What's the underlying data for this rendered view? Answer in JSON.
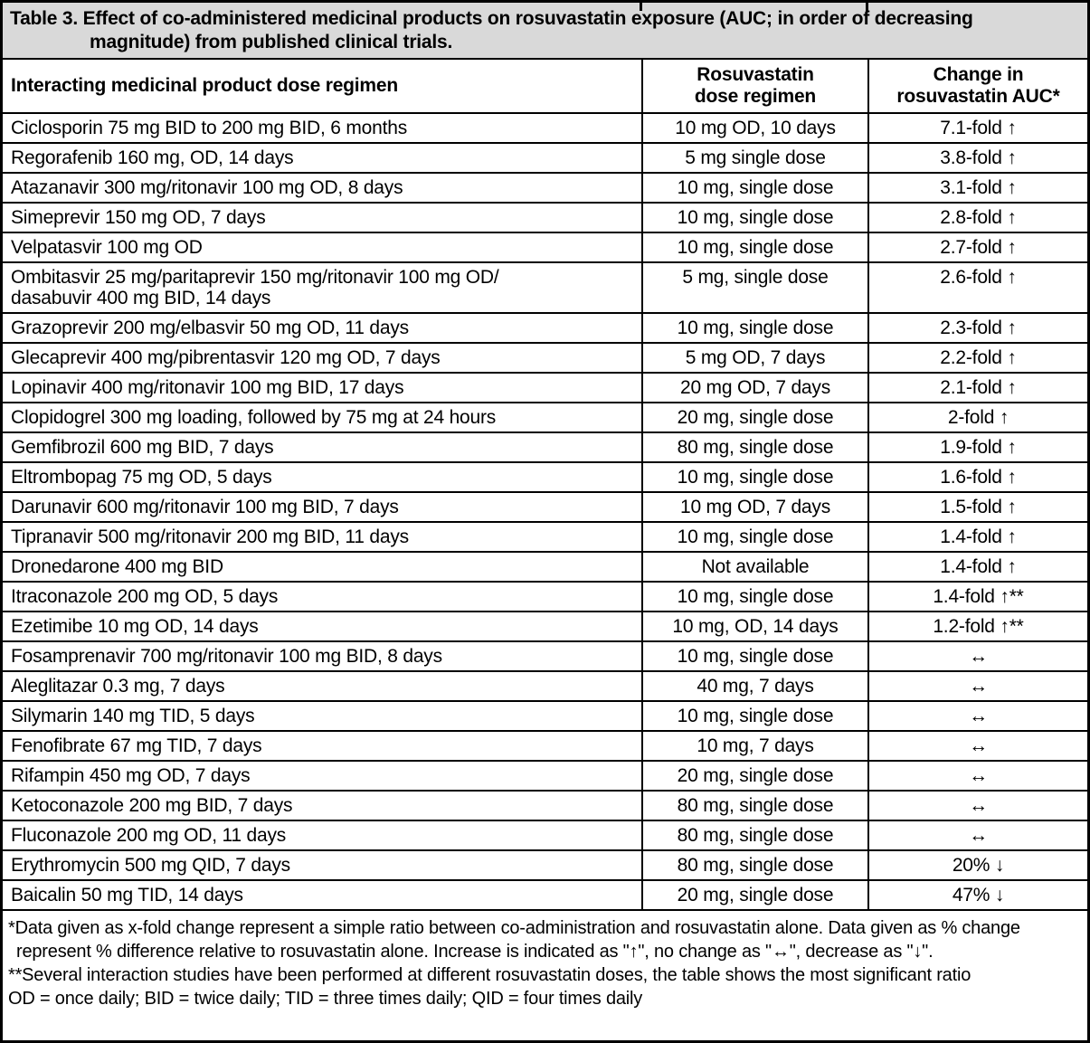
{
  "document": {
    "title": "Table 3. Effect of co-administered medicinal products on rosuvastatin exposure (AUC; in order of decreasing\nmagnitude) from published clinical trials.",
    "columns": {
      "drug": "Interacting medicinal product dose regimen",
      "dose": "Rosuvastatin\ndose regimen",
      "change": "Change in\nrosuvastatin AUC*"
    },
    "rows": [
      {
        "drug": "Ciclosporin 75 mg BID to 200 mg BID, 6 months",
        "dose": "10 mg OD, 10 days",
        "change": "7.1-fold ↑"
      },
      {
        "drug": "Regorafenib 160 mg, OD, 14 days",
        "dose": "5 mg single dose",
        "change": "3.8-fold ↑"
      },
      {
        "drug": "Atazanavir 300 mg/ritonavir 100 mg OD, 8 days",
        "dose": "10 mg, single dose",
        "change": "3.1-fold ↑"
      },
      {
        "drug": "Simeprevir 150 mg OD, 7 days",
        "dose": "10 mg, single dose",
        "change": "2.8-fold ↑"
      },
      {
        "drug": "Velpatasvir 100 mg OD",
        "dose": "10 mg, single dose",
        "change": "2.7-fold ↑"
      },
      {
        "drug": "Ombitasvir 25 mg/paritaprevir 150 mg/ritonavir 100 mg OD/\ndasabuvir 400 mg BID, 14 days",
        "dose": "5 mg, single dose",
        "change": "2.6-fold ↑"
      },
      {
        "drug": "Grazoprevir 200 mg/elbasvir 50 mg OD, 11 days",
        "dose": "10 mg, single dose",
        "change": "2.3-fold ↑"
      },
      {
        "drug": "Glecaprevir 400 mg/pibrentasvir 120 mg OD, 7 days",
        "dose": "5 mg OD, 7 days",
        "change": "2.2-fold ↑"
      },
      {
        "drug": "Lopinavir 400 mg/ritonavir 100 mg BID, 17 days",
        "dose": "20 mg OD, 7 days",
        "change": "2.1-fold ↑"
      },
      {
        "drug": "Clopidogrel 300 mg loading, followed by 75 mg at 24 hours",
        "dose": "20 mg, single dose",
        "change": "2-fold ↑"
      },
      {
        "drug": "Gemfibrozil 600 mg BID, 7 days",
        "dose": "80 mg, single dose",
        "change": "1.9-fold ↑"
      },
      {
        "drug": "Eltrombopag 75 mg OD, 5 days",
        "dose": "10 mg, single dose",
        "change": "1.6-fold ↑"
      },
      {
        "drug": "Darunavir 600 mg/ritonavir 100 mg BID, 7 days",
        "dose": "10 mg OD, 7 days",
        "change": "1.5-fold ↑"
      },
      {
        "drug": "Tipranavir 500 mg/ritonavir 200 mg BID, 11 days",
        "dose": "10 mg, single dose",
        "change": "1.4-fold ↑"
      },
      {
        "drug": "Dronedarone 400 mg BID",
        "dose": "Not available",
        "change": "1.4-fold ↑"
      },
      {
        "drug": "Itraconazole 200 mg OD, 5 days",
        "dose": "10 mg, single dose",
        "change": "1.4-fold ↑**"
      },
      {
        "drug": "Ezetimibe 10 mg OD, 14 days",
        "dose": "10 mg, OD, 14 days",
        "change": "1.2-fold ↑**"
      },
      {
        "drug": "Fosamprenavir 700 mg/ritonavir 100 mg BID, 8 days",
        "dose": "10 mg, single dose",
        "change": "↔"
      },
      {
        "drug": "Aleglitazar 0.3 mg, 7 days",
        "dose": "40 mg, 7 days",
        "change": "↔"
      },
      {
        "drug": "Silymarin 140 mg TID, 5 days",
        "dose": "10 mg, single dose",
        "change": "↔"
      },
      {
        "drug": "Fenofibrate 67 mg TID, 7 days",
        "dose": "10 mg, 7 days",
        "change": "↔"
      },
      {
        "drug": "Rifampin 450 mg OD, 7 days",
        "dose": "20 mg, single dose",
        "change": "↔"
      },
      {
        "drug": "Ketoconazole 200 mg BID, 7 days",
        "dose": "80 mg, single dose",
        "change": "↔"
      },
      {
        "drug": "Fluconazole 200 mg OD, 11 days",
        "dose": "80 mg, single dose",
        "change": "↔"
      },
      {
        "drug": "Erythromycin 500 mg QID, 7 days",
        "dose": "80 mg, single dose",
        "change": "20% ↓"
      },
      {
        "drug": "Baicalin 50 mg TID, 14 days",
        "dose": "20 mg, single dose",
        "change": "47% ↓"
      }
    ],
    "footnotes": [
      "*Data given as x-fold change represent a simple ratio between co-administration and rosuvastatin alone. Data given as % change represent % difference relative to rosuvastatin alone. Increase is indicated as \"↑\", no change as \"↔\", decrease as \"↓\".",
      "**Several interaction studies have been performed at different rosuvastatin doses, the table shows the most significant ratio",
      "OD = once daily; BID = twice daily; TID = three times daily; QID = four times daily"
    ],
    "colors": {
      "title_background": "#d9d9d9",
      "border": "#000000",
      "text": "#000000",
      "row_background": "#ffffff"
    }
  }
}
